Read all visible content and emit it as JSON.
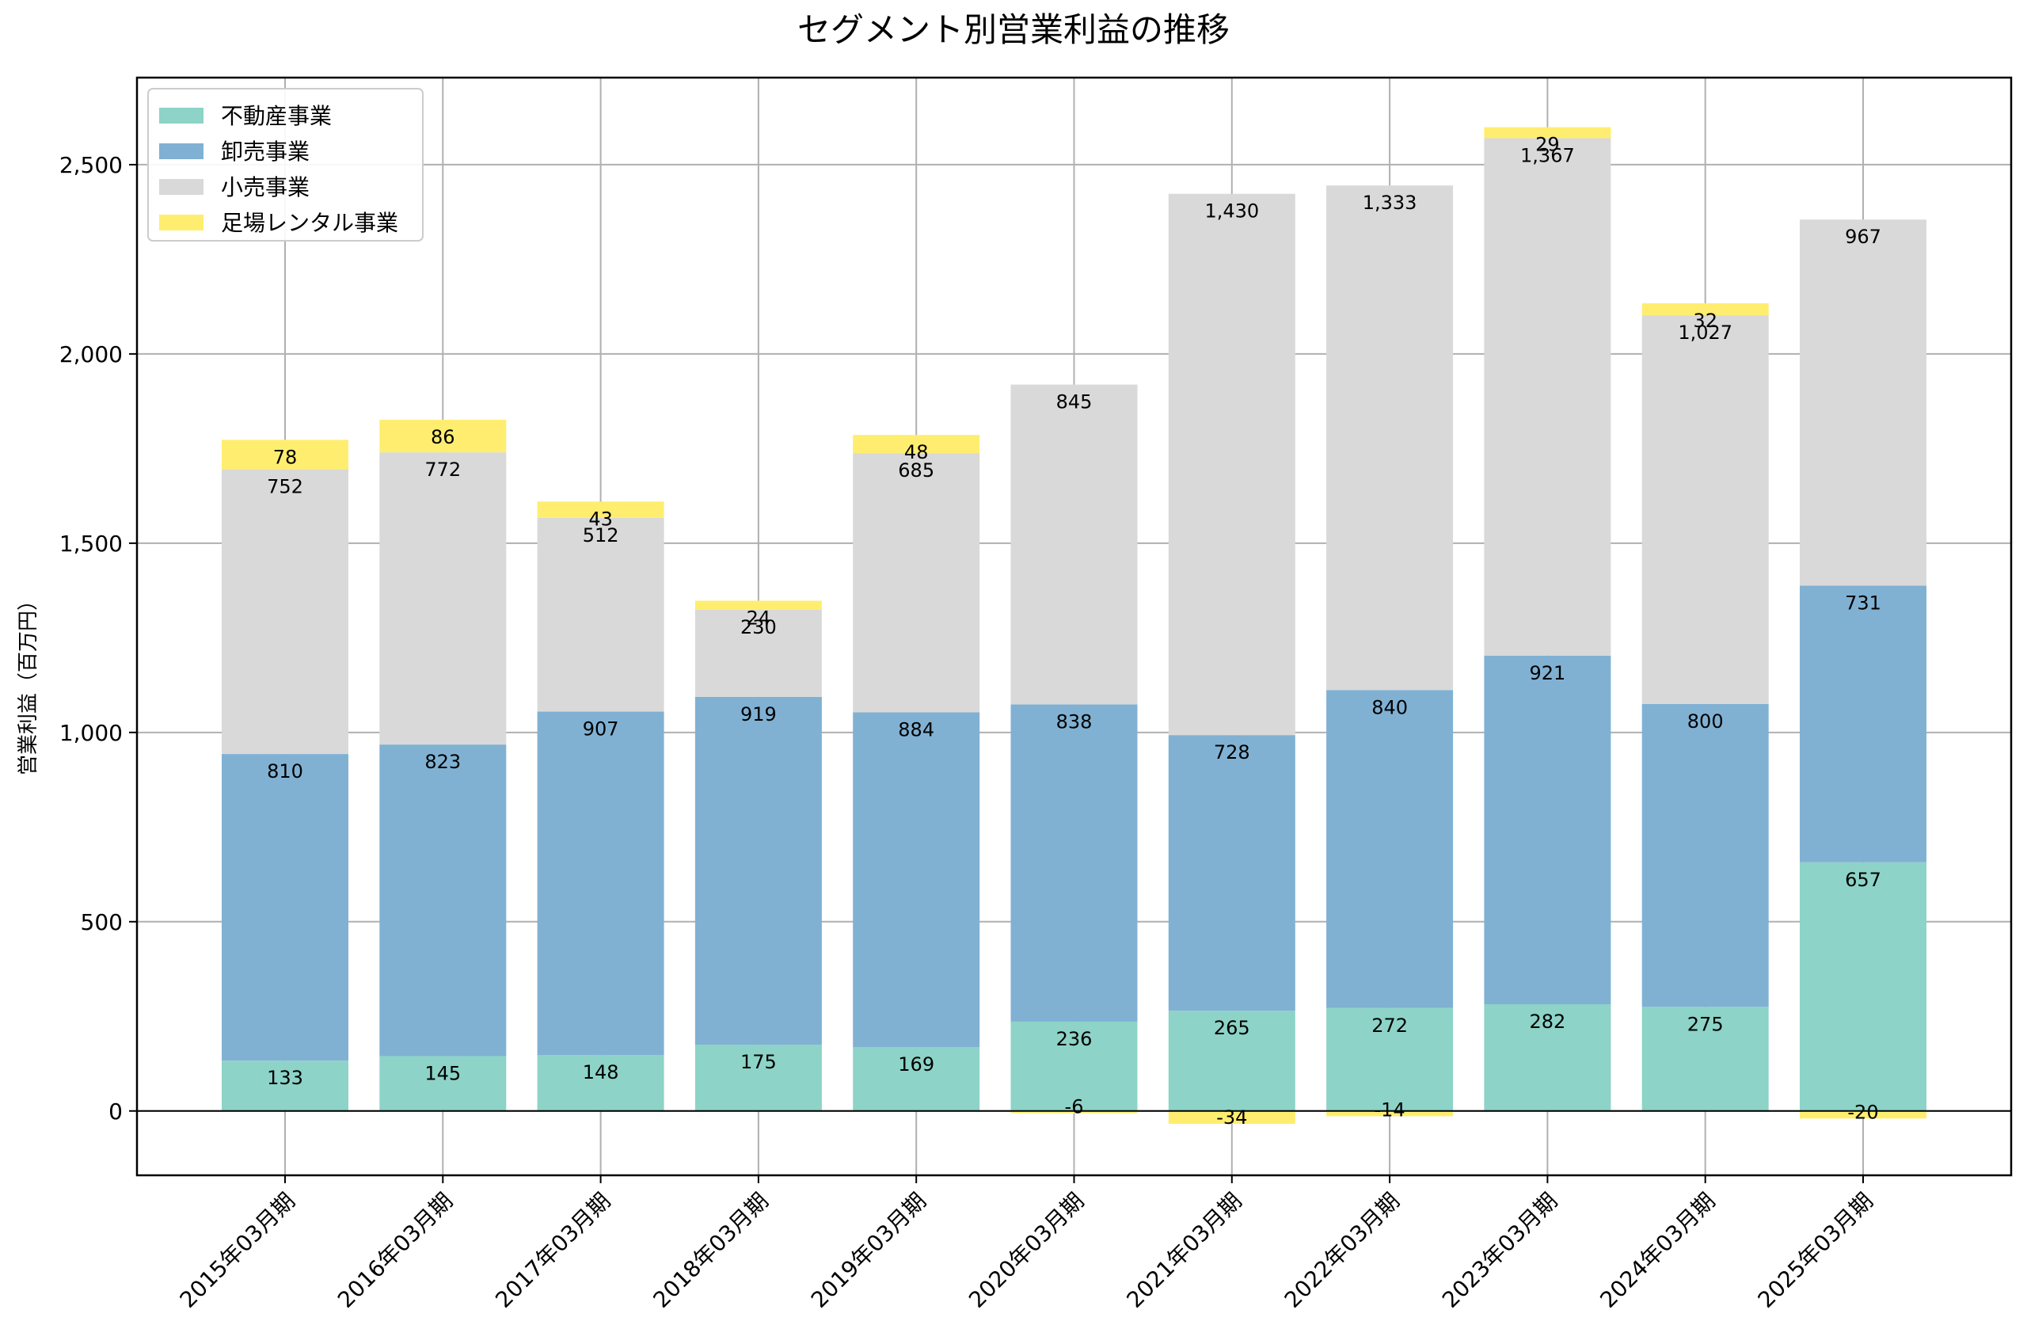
{
  "chart_data": {
    "type": "bar",
    "stacked": true,
    "title": "セグメント別営業利益の推移",
    "xlabel": "",
    "ylabel": "営業利益（百万円）",
    "ylim": [
      -170,
      2730
    ],
    "yticks": [
      0,
      500,
      1000,
      1500,
      2000,
      2500
    ],
    "ytick_labels": [
      "0",
      "500",
      "1,000",
      "1,500",
      "2,000",
      "2,500"
    ],
    "grid": true,
    "legend_position": "top-left",
    "categories": [
      "2015年03月期",
      "2016年03月期",
      "2017年03月期",
      "2018年03月期",
      "2019年03月期",
      "2020年03月期",
      "2021年03月期",
      "2022年03月期",
      "2023年03月期",
      "2024年03月期",
      "2025年03月期"
    ],
    "series": [
      {
        "name": "不動産事業",
        "color": "#8dd3c7",
        "values": [
          133,
          145,
          148,
          175,
          169,
          236,
          265,
          272,
          282,
          275,
          657
        ],
        "labels": [
          "133",
          "145",
          "148",
          "175",
          "169",
          "236",
          "265",
          "272",
          "282",
          "275",
          "657"
        ]
      },
      {
        "name": "卸売事業",
        "color": "#80b1d3",
        "values": [
          810,
          823,
          907,
          919,
          884,
          838,
          728,
          840,
          921,
          800,
          731
        ],
        "labels": [
          "810",
          "823",
          "907",
          "919",
          "884",
          "838",
          "728",
          "840",
          "921",
          "800",
          "731"
        ]
      },
      {
        "name": "小売事業",
        "color": "#d9d9d9",
        "values": [
          752,
          772,
          512,
          230,
          685,
          845,
          1430,
          1333,
          1367,
          1027,
          967
        ],
        "labels": [
          "752",
          "772",
          "512",
          "230",
          "685",
          "845",
          "1,430",
          "1,333",
          "1,367",
          "1,027",
          "967"
        ]
      },
      {
        "name": "足場レンタル事業",
        "color": "#ffed6f",
        "values": [
          78,
          86,
          43,
          24,
          48,
          -6,
          -34,
          -14,
          29,
          32,
          -20
        ],
        "labels": [
          "78",
          "86",
          "43",
          "24",
          "48",
          "-6",
          "-34",
          "-14",
          "29",
          "32",
          "-20"
        ]
      }
    ]
  }
}
